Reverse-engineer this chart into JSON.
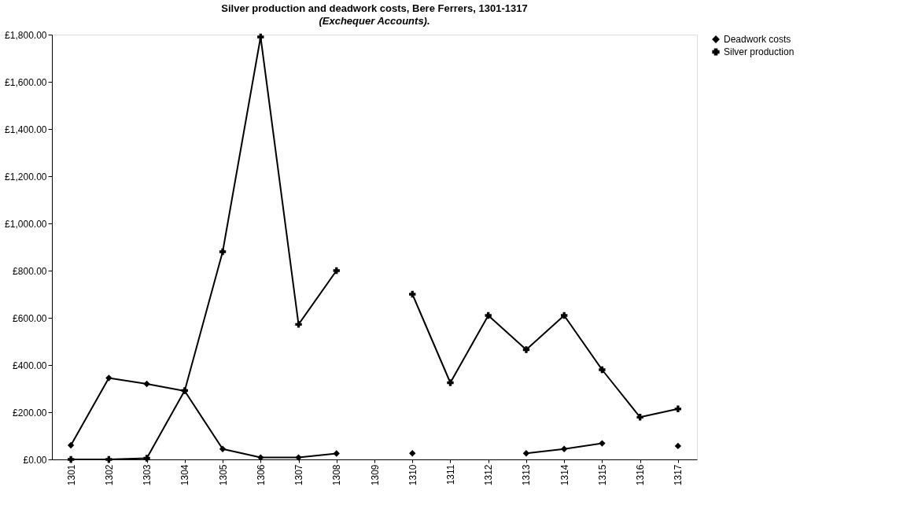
{
  "chart_data": {
    "type": "line",
    "title": "Silver production and deadwork costs, Bere Ferrers, 1301-1317",
    "subtitle": "(Exchequer Accounts).",
    "categories": [
      "1301",
      "1302",
      "1303",
      "1304",
      "1305",
      "1306",
      "1307",
      "1308",
      "1309",
      "1310",
      "1311",
      "1312",
      "1313",
      "1314",
      "1315",
      "1316",
      "1317"
    ],
    "series": [
      {
        "name": "Deadwork costs",
        "color": "#000000",
        "marker": "diamond",
        "values": [
          60,
          345,
          320,
          290,
          44,
          8,
          8,
          25,
          null,
          26,
          null,
          null,
          26,
          44,
          68,
          null,
          57
        ]
      },
      {
        "name": "Silver production",
        "color": "#000000",
        "marker": "cross",
        "values": [
          0,
          0,
          5,
          292,
          880,
          1790,
          572,
          800,
          null,
          700,
          325,
          610,
          465,
          610,
          380,
          179,
          214
        ]
      }
    ],
    "ylim": [
      0,
      1800
    ],
    "yticks": [
      {
        "value": 0,
        "label": "£0.00"
      },
      {
        "value": 200,
        "label": "£200.00"
      },
      {
        "value": 400,
        "label": "£400.00"
      },
      {
        "value": 600,
        "label": "£600.00"
      },
      {
        "value": 800,
        "label": "£800.00"
      },
      {
        "value": 1000,
        "label": "£1,000.00"
      },
      {
        "value": 1200,
        "label": "£1,200.00"
      },
      {
        "value": 1400,
        "label": "£1,400.00"
      },
      {
        "value": 1600,
        "label": "£1,600.00"
      },
      {
        "value": 1800,
        "label": "£1,800.00"
      }
    ],
    "grid": false,
    "legend": "right",
    "line_style": "solid"
  }
}
